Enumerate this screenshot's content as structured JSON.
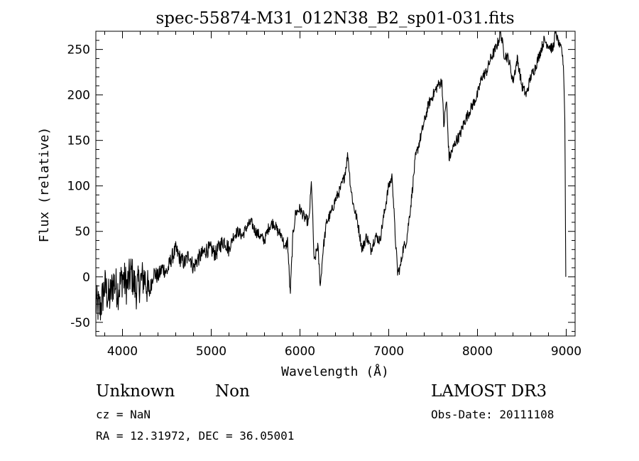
{
  "chart_data": {
    "type": "line",
    "title": "spec-55874-M31_012N38_B2_sp01-031.fits",
    "xlabel": "Wavelength (Å)",
    "ylabel": "Flux (relative)",
    "xlim": [
      3700,
      9100
    ],
    "ylim": [
      -65,
      270
    ],
    "xticks": [
      4000,
      5000,
      6000,
      7000,
      8000,
      9000
    ],
    "yticks": [
      -50,
      0,
      50,
      100,
      150,
      200,
      250
    ],
    "grid": false,
    "series": [
      {
        "color": "#000000",
        "x": [
          3700,
          3750,
          3800,
          3850,
          3900,
          3950,
          4000,
          4050,
          4100,
          4150,
          4200,
          4250,
          4300,
          4350,
          4400,
          4450,
          4500,
          4550,
          4600,
          4650,
          4700,
          4750,
          4800,
          4850,
          4900,
          4950,
          5000,
          5050,
          5100,
          5150,
          5200,
          5250,
          5300,
          5350,
          5400,
          5450,
          5500,
          5550,
          5600,
          5650,
          5700,
          5750,
          5800,
          5830,
          5860,
          5890,
          5920,
          5950,
          6000,
          6050,
          6100,
          6130,
          6160,
          6200,
          6230,
          6260,
          6300,
          6350,
          6400,
          6450,
          6500,
          6540,
          6570,
          6600,
          6650,
          6700,
          6750,
          6800,
          6850,
          6900,
          6950,
          7000,
          7040,
          7070,
          7100,
          7130,
          7160,
          7200,
          7250,
          7300,
          7350,
          7400,
          7450,
          7500,
          7550,
          7600,
          7620,
          7650,
          7680,
          7720,
          7760,
          7800,
          7850,
          7900,
          7950,
          8000,
          8050,
          8100,
          8150,
          8200,
          8240,
          8260,
          8300,
          8350,
          8400,
          8450,
          8500,
          8550,
          8600,
          8650,
          8700,
          8750,
          8800,
          8850,
          8880,
          8920,
          8950,
          8970,
          8985,
          8995
        ],
        "y": [
          -30,
          -35,
          -10,
          -25,
          -5,
          -15,
          0,
          -10,
          5,
          -15,
          -5,
          0,
          -20,
          5,
          0,
          10,
          5,
          20,
          30,
          20,
          15,
          25,
          10,
          20,
          25,
          30,
          30,
          25,
          35,
          40,
          30,
          45,
          50,
          45,
          55,
          60,
          50,
          45,
          40,
          55,
          60,
          50,
          45,
          30,
          40,
          -20,
          45,
          70,
          75,
          65,
          60,
          105,
          15,
          35,
          -10,
          30,
          60,
          70,
          85,
          95,
          110,
          135,
          100,
          80,
          60,
          30,
          45,
          30,
          45,
          40,
          70,
          100,
          110,
          50,
          5,
          10,
          30,
          40,
          80,
          130,
          150,
          170,
          190,
          200,
          210,
          215,
          165,
          195,
          130,
          140,
          150,
          155,
          170,
          180,
          190,
          200,
          220,
          225,
          240,
          250,
          260,
          270,
          245,
          240,
          215,
          240,
          210,
          200,
          220,
          230,
          245,
          260,
          255,
          250,
          270,
          255,
          250,
          230,
          170,
          0
        ]
      }
    ]
  },
  "footer": {
    "object_class": "Unknown",
    "subclass": "Non",
    "survey": "LAMOST DR3",
    "cz": "cz = NaN",
    "obs_date": "Obs-Date: 20111108",
    "coords": "RA =  12.31972, DEC =  36.05001"
  }
}
